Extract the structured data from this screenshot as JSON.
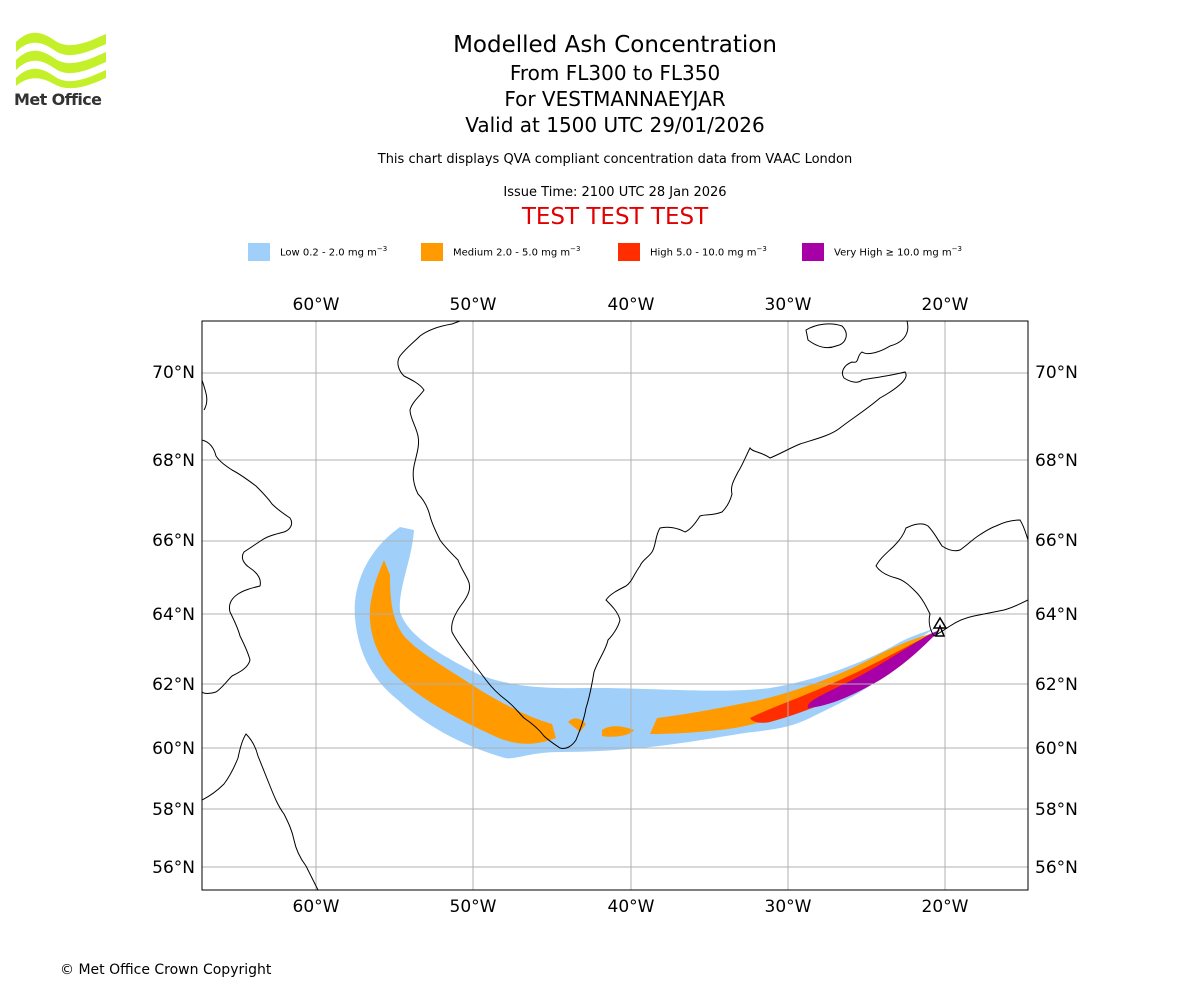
{
  "logo": {
    "name": "Met Office"
  },
  "header": {
    "title": "Modelled Ash Concentration",
    "level_range": "From FL300 to FL350",
    "volcano": "For VESTMANNAEYJAR",
    "valid_time": "Valid at 1500 UTC 29/01/2026",
    "description": "This chart displays QVA compliant concentration data from VAAC London",
    "issue_time": "Issue Time: 2100 UTC 28 Jan 2026",
    "test_banner": "TEST TEST TEST"
  },
  "legend": [
    {
      "label": "Low 0.2 - 2.0 mg m",
      "exponent": "−3",
      "color": "#a0d0fa"
    },
    {
      "label": "Medium 2.0 - 5.0 mg m",
      "exponent": "−3",
      "color": "#ff9a00"
    },
    {
      "label": "High 5.0 - 10.0 mg m",
      "exponent": "−3",
      "color": "#ff2d00"
    },
    {
      "label": "Very High  ≥  10.0 mg m",
      "exponent": "−3",
      "color": "#a600a6"
    }
  ],
  "map": {
    "lon_labels": [
      "60°W",
      "50°W",
      "40°W",
      "30°W",
      "20°W"
    ],
    "lat_labels": [
      "70°N",
      "68°N",
      "66°N",
      "64°N",
      "62°N",
      "60°N",
      "58°N",
      "56°N"
    ],
    "volcano_marker": "volcano-source-icon"
  },
  "footer": {
    "copyright": "© Met Office Crown Copyright"
  }
}
